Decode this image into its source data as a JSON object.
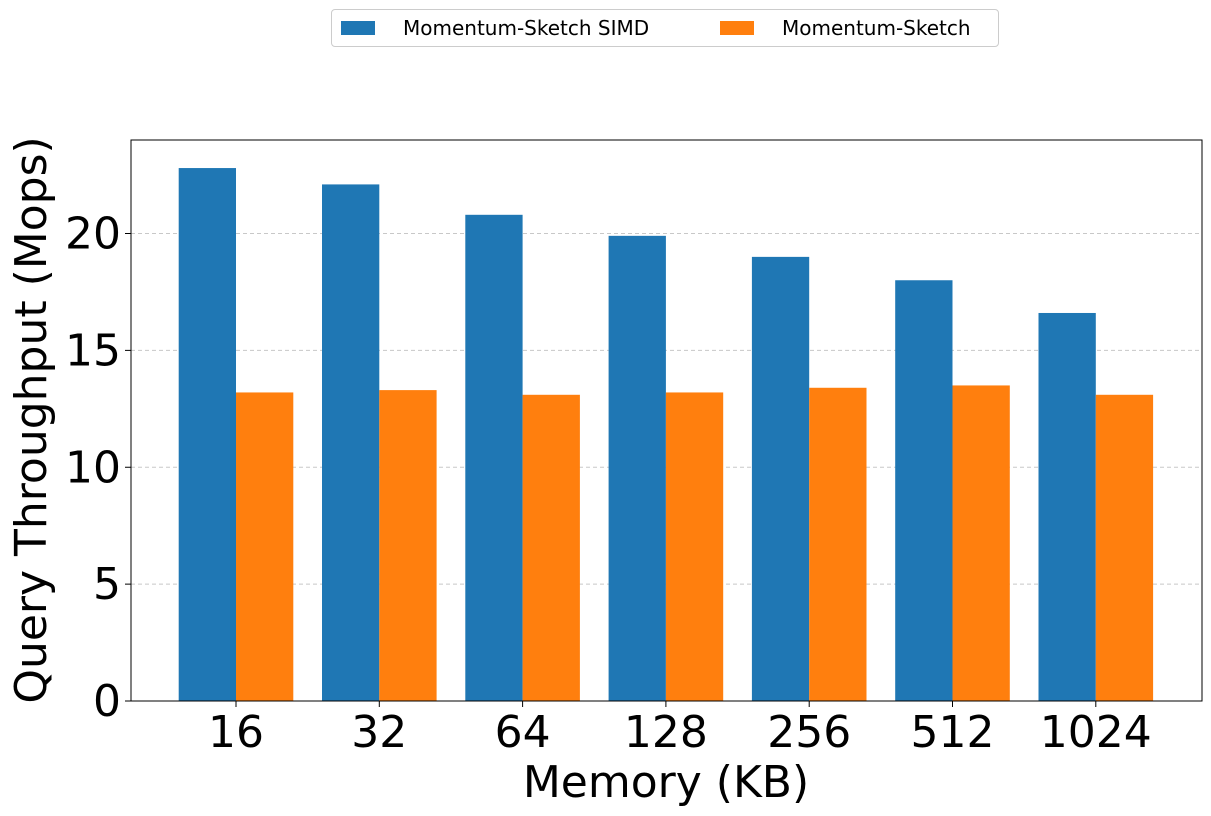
{
  "chart_data": {
    "type": "bar",
    "title": "",
    "xlabel": "Memory (KB)",
    "ylabel": "Query Throughput (Mops)",
    "categories": [
      "16",
      "32",
      "64",
      "128",
      "256",
      "512",
      "1024"
    ],
    "series": [
      {
        "name": "Momentum-Sketch SIMD",
        "color": "#1f77b4",
        "values": [
          22.8,
          22.1,
          20.8,
          19.9,
          19.0,
          18.0,
          16.6
        ]
      },
      {
        "name": "Momentum-Sketch",
        "color": "#ff7f0e",
        "values": [
          13.2,
          13.3,
          13.1,
          13.2,
          13.4,
          13.5,
          13.1
        ]
      }
    ],
    "ylim": [
      0,
      24
    ],
    "yticks": [
      0,
      5,
      10,
      15,
      20
    ],
    "grid": "horizontal dashed",
    "legend_position": "top-center"
  }
}
